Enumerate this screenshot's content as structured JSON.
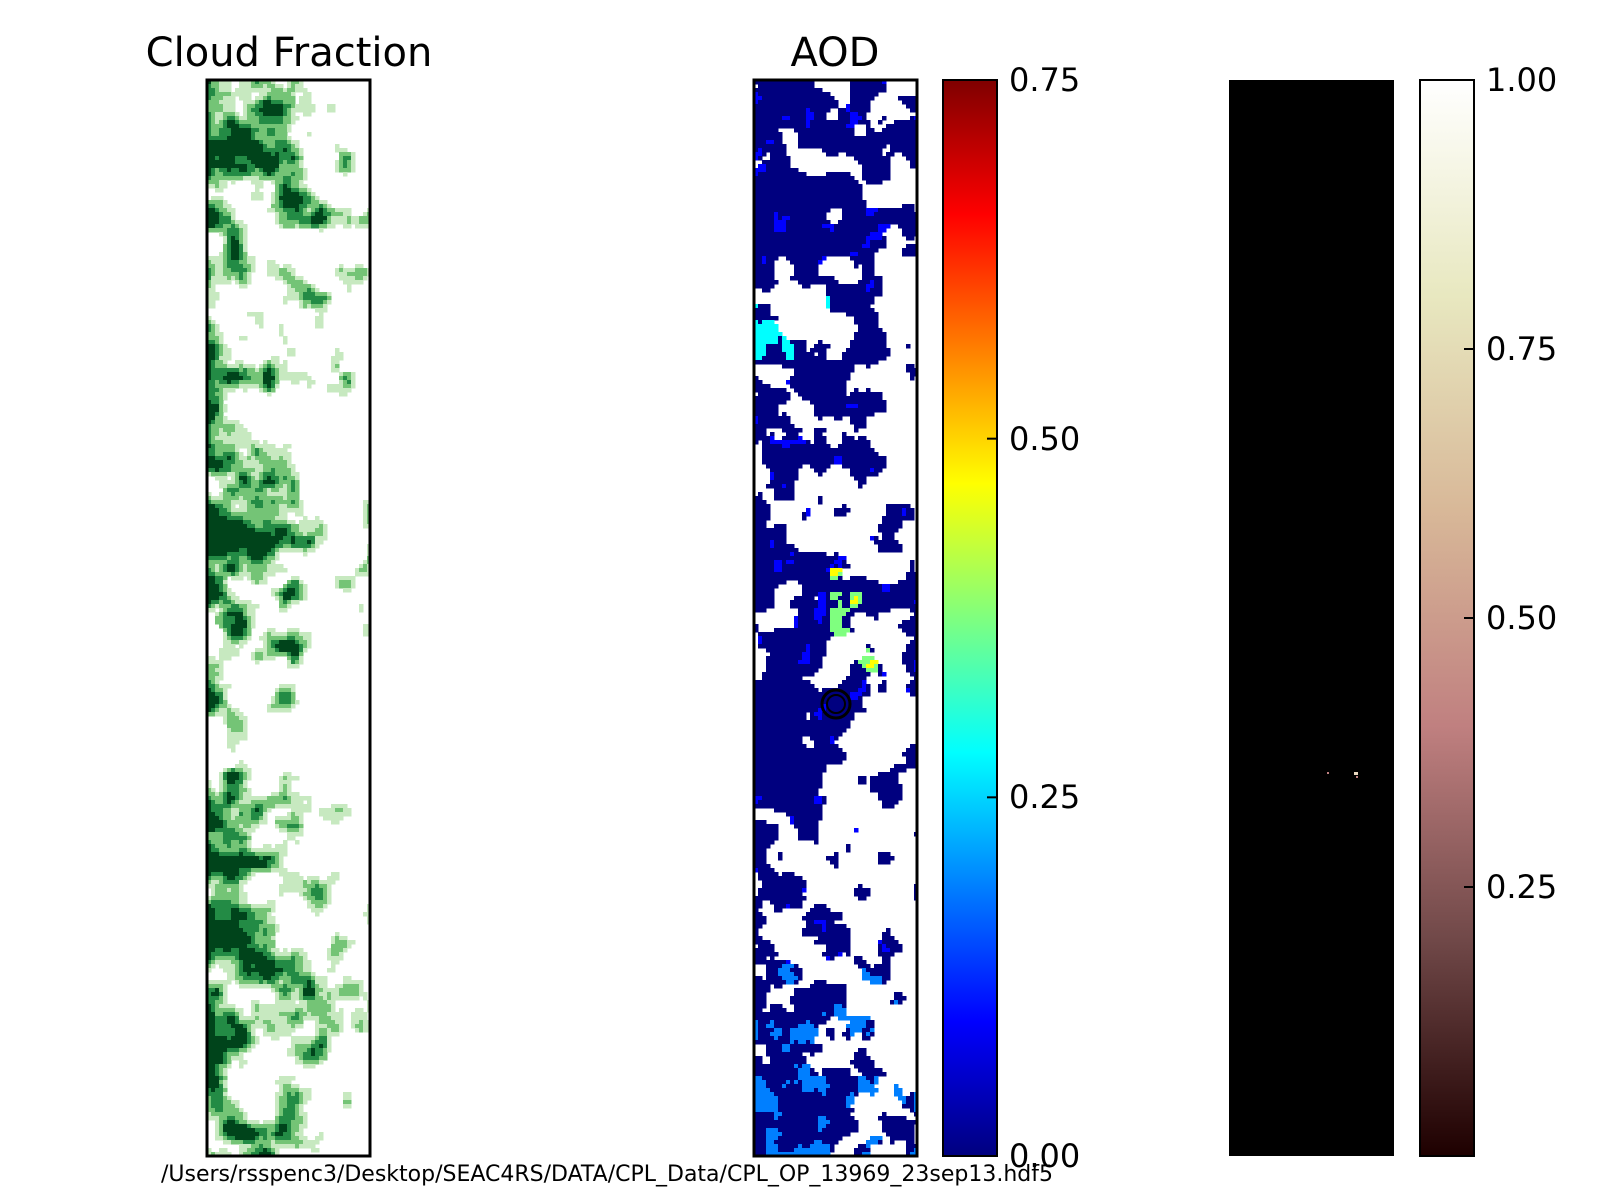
{
  "chart_data": [
    {
      "type": "heatmap",
      "title": "Cloud Fraction",
      "colormap": "Greens",
      "colors": [
        "#ffffff",
        "#c7e9c0",
        "#74c476",
        "#238b45",
        "#00441b"
      ],
      "background": "#ffffff",
      "has_colorbar": false
    },
    {
      "type": "heatmap",
      "title": "AOD",
      "colormap": "jet",
      "colors": [
        "#00007f",
        "#0000ff",
        "#007fff",
        "#00ffff",
        "#7fff7f",
        "#ffff00",
        "#ff7f00",
        "#ff0000",
        "#7f0000"
      ],
      "range": [
        0.0,
        0.75
      ],
      "colorbar_ticks": [
        "0.00",
        "0.25",
        "0.50",
        "0.75"
      ],
      "colorbar_tick_values": [
        0.0,
        0.25,
        0.5,
        0.75
      ],
      "marker": {
        "shape": "circle",
        "color": "#000080",
        "edge": "#000000"
      }
    },
    {
      "type": "heatmap",
      "title": "",
      "colormap": "pink",
      "colors": [
        "#1e0000",
        "#704848",
        "#c08080",
        "#d8b898",
        "#e8e8c0",
        "#ffffff"
      ],
      "background": "#000000",
      "range": [
        0.0,
        1.0
      ],
      "colorbar_ticks": [
        "0.25",
        "0.50",
        "0.75",
        "1.00"
      ],
      "colorbar_tick_values": [
        0.25,
        0.5,
        0.75,
        1.0
      ]
    }
  ],
  "footer": "/Users/rsspenc3/Desktop/SEAC4RS/DATA/CPL_Data/CPL_OP_13969_23sep13.hdf5"
}
